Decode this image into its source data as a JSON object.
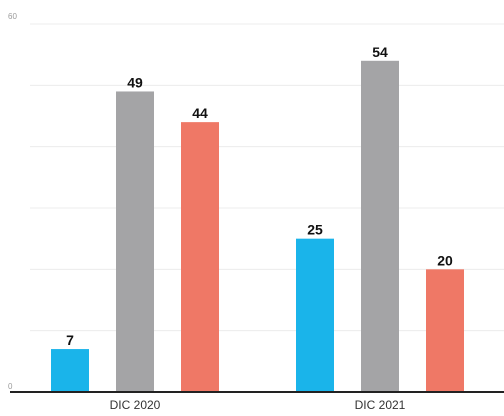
{
  "chart_data": {
    "type": "bar",
    "categories": [
      "DIC 2020",
      "DIC 2021"
    ],
    "series": [
      {
        "values": [
          7,
          25
        ],
        "color": "#1ab4ea"
      },
      {
        "values": [
          49,
          54
        ],
        "color": "#a4a4a6"
      },
      {
        "values": [
          44,
          20
        ],
        "color": "#ef7866"
      }
    ],
    "ylim": [
      0,
      60
    ],
    "yticks": [
      "0",
      "60"
    ],
    "grid": true,
    "legend": "none",
    "title": "",
    "xlabel": "",
    "ylabel": ""
  }
}
